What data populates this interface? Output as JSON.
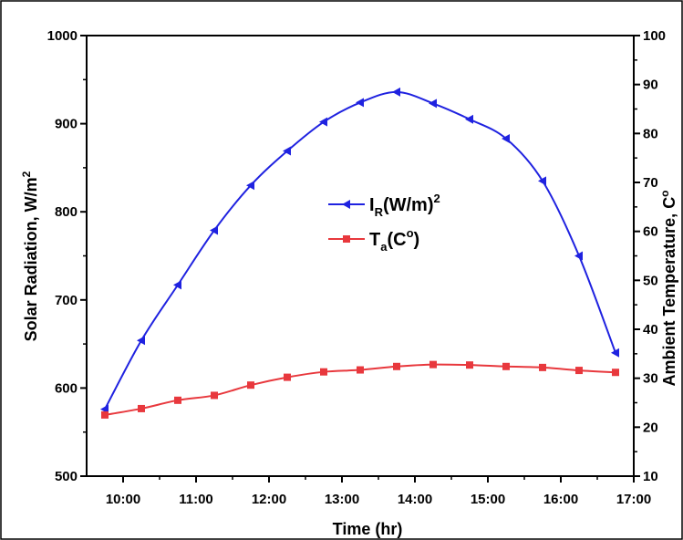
{
  "chart_data": {
    "type": "line",
    "x_label": "Time (hr)",
    "y_left_label": "Solar Radiation, W/m",
    "y_left_label_sup": "2",
    "y_right_label": "Ambient Temperature, C",
    "y_right_label_sup": "o",
    "x_ticks": [
      "10:00",
      "11:00",
      "12:00",
      "13:00",
      "14:00",
      "15:00",
      "16:00",
      "17:00"
    ],
    "x_tick_values": [
      10,
      11,
      12,
      13,
      14,
      15,
      16,
      17
    ],
    "x_range": [
      9.5,
      17
    ],
    "y_left_ticks": [
      "500",
      "600",
      "700",
      "800",
      "900",
      "1000"
    ],
    "y_left_range": [
      500,
      1000
    ],
    "y_right_ticks": [
      "10",
      "20",
      "30",
      "40",
      "50",
      "60",
      "70",
      "80",
      "90",
      "100"
    ],
    "y_right_range": [
      10,
      100
    ],
    "legend_position": "center",
    "series": [
      {
        "name": "I_R(W/m)^2",
        "legend_main": "I",
        "legend_sub": "R",
        "legend_rest": "(W/m)",
        "legend_sup": "2",
        "axis": "left",
        "marker": "triangle-left",
        "color": "#1f22e0",
        "x": [
          9.75,
          10.25,
          10.75,
          11.25,
          11.75,
          12.25,
          12.75,
          13.25,
          13.75,
          14.25,
          14.75,
          15.25,
          15.75,
          16.25,
          16.75
        ],
        "values": [
          576,
          654,
          717,
          779,
          830,
          869,
          902,
          924,
          936,
          923,
          905,
          883,
          835,
          750,
          640
        ]
      },
      {
        "name": "T_a(C^o)",
        "legend_main": "T",
        "legend_sub": "a",
        "legend_rest": "(C",
        "legend_sup": "o",
        "legend_end": ")",
        "axis": "right",
        "marker": "square",
        "color": "#e8383d",
        "x": [
          9.75,
          10.25,
          10.75,
          11.25,
          11.75,
          12.25,
          12.75,
          13.25,
          13.75,
          14.25,
          14.75,
          15.25,
          15.75,
          16.25,
          16.75
        ],
        "values": [
          22.5,
          23.8,
          25.5,
          26.5,
          28.6,
          30.2,
          31.3,
          31.7,
          32.4,
          32.8,
          32.7,
          32.4,
          32.2,
          31.6,
          31.2
        ]
      }
    ]
  }
}
